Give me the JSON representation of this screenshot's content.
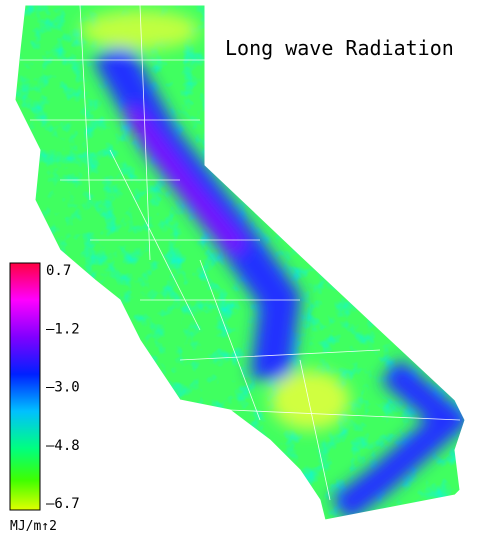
{
  "title": "Long wave Radiation",
  "legend": {
    "labels": [
      "0.7",
      "–1.2",
      "–3.0",
      "–4.8",
      "–6.7"
    ],
    "unit": "MJ/m↑2"
  }
}
